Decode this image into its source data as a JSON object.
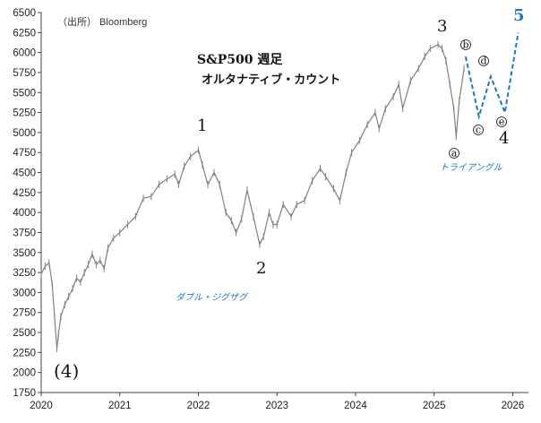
{
  "source_label": "（出所） Bloomberg",
  "chart_data": {
    "type": "line",
    "title": "S&P500 週足",
    "subtitle": "オルタナティブ・カウント",
    "ylim": [
      1750,
      6500
    ],
    "yticks": [
      1750,
      2000,
      2250,
      2500,
      2750,
      3000,
      3250,
      3500,
      3750,
      4000,
      4250,
      4500,
      4750,
      5000,
      5250,
      5500,
      5750,
      6000,
      6250,
      6500
    ],
    "xlim": [
      2020.0,
      2026.2
    ],
    "xticks": [
      "2020",
      "2021",
      "2022",
      "2023",
      "2024",
      "2025",
      "2026"
    ],
    "series": [
      {
        "values": [
          [
            2020.0,
            3230
          ],
          [
            2020.05,
            3330
          ],
          [
            2020.1,
            3370
          ],
          [
            2020.14,
            3100
          ],
          [
            2020.17,
            2700
          ],
          [
            2020.2,
            2300
          ],
          [
            2020.22,
            2480
          ],
          [
            2020.25,
            2700
          ],
          [
            2020.3,
            2850
          ],
          [
            2020.35,
            2950
          ],
          [
            2020.4,
            3050
          ],
          [
            2020.45,
            3180
          ],
          [
            2020.5,
            3130
          ],
          [
            2020.55,
            3250
          ],
          [
            2020.6,
            3350
          ],
          [
            2020.65,
            3480
          ],
          [
            2020.7,
            3350
          ],
          [
            2020.75,
            3400
          ],
          [
            2020.8,
            3300
          ],
          [
            2020.85,
            3560
          ],
          [
            2020.92,
            3680
          ],
          [
            2021.0,
            3750
          ],
          [
            2021.1,
            3850
          ],
          [
            2021.2,
            3950
          ],
          [
            2021.3,
            4180
          ],
          [
            2021.4,
            4200
          ],
          [
            2021.5,
            4350
          ],
          [
            2021.6,
            4420
          ],
          [
            2021.7,
            4480
          ],
          [
            2021.75,
            4350
          ],
          [
            2021.82,
            4580
          ],
          [
            2021.9,
            4700
          ],
          [
            2022.0,
            4780
          ],
          [
            2022.05,
            4600
          ],
          [
            2022.12,
            4350
          ],
          [
            2022.2,
            4500
          ],
          [
            2022.27,
            4350
          ],
          [
            2022.35,
            4000
          ],
          [
            2022.42,
            3900
          ],
          [
            2022.48,
            3750
          ],
          [
            2022.55,
            3920
          ],
          [
            2022.62,
            4280
          ],
          [
            2022.7,
            3950
          ],
          [
            2022.78,
            3600
          ],
          [
            2022.83,
            3700
          ],
          [
            2022.9,
            4000
          ],
          [
            2022.95,
            3850
          ],
          [
            2023.0,
            3850
          ],
          [
            2023.08,
            4100
          ],
          [
            2023.18,
            3950
          ],
          [
            2023.25,
            4100
          ],
          [
            2023.35,
            4150
          ],
          [
            2023.45,
            4400
          ],
          [
            2023.55,
            4550
          ],
          [
            2023.62,
            4450
          ],
          [
            2023.72,
            4300
          ],
          [
            2023.8,
            4150
          ],
          [
            2023.88,
            4500
          ],
          [
            2023.95,
            4750
          ],
          [
            2024.05,
            4900
          ],
          [
            2024.15,
            5100
          ],
          [
            2024.25,
            5250
          ],
          [
            2024.3,
            5050
          ],
          [
            2024.38,
            5300
          ],
          [
            2024.48,
            5450
          ],
          [
            2024.55,
            5600
          ],
          [
            2024.6,
            5300
          ],
          [
            2024.7,
            5650
          ],
          [
            2024.8,
            5800
          ],
          [
            2024.88,
            5950
          ],
          [
            2024.95,
            6050
          ],
          [
            2025.05,
            6100
          ],
          [
            2025.1,
            6050
          ],
          [
            2025.15,
            5900
          ],
          [
            2025.2,
            5600
          ],
          [
            2025.25,
            5300
          ],
          [
            2025.28,
            4950
          ],
          [
            2025.32,
            5400
          ],
          [
            2025.38,
            5800
          ]
        ]
      }
    ],
    "projection": [
      [
        2025.4,
        5950
      ],
      [
        2025.57,
        5200
      ],
      [
        2025.72,
        5700
      ],
      [
        2025.9,
        5250
      ],
      [
        2026.07,
        6250
      ]
    ],
    "labels": {
      "wave_1": "1",
      "wave_2": "2",
      "wave_3": "3",
      "wave_4": "4",
      "wave_5": "5",
      "wave_4_prev": "(4)",
      "sub_a": "a",
      "sub_b": "b",
      "sub_c": "c",
      "sub_d": "d",
      "sub_e": "e",
      "note_double_zigzag": "ダブル・ジグザグ",
      "note_triangle": "トライアングル"
    },
    "grid": false,
    "colors": {
      "price": "#808080",
      "projection": "#1f77c4",
      "axis": "#444444"
    }
  }
}
